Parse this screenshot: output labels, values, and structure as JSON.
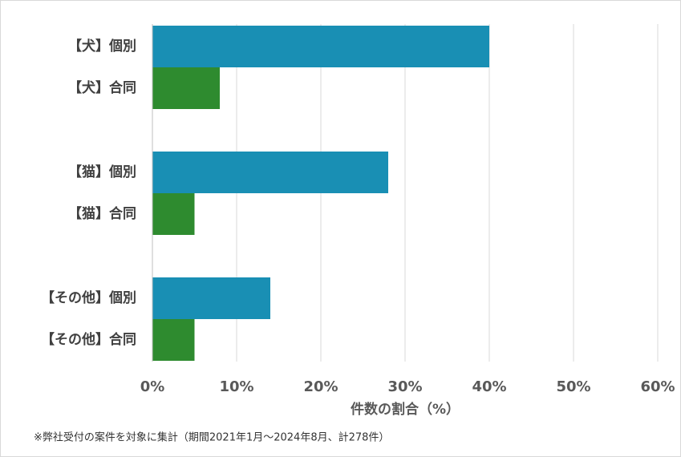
{
  "chart_data": {
    "type": "hbar",
    "categories": [
      "【犬】個別",
      "【犬】合同",
      "【猫】個別",
      "【猫】合同",
      "【その他】個別",
      "【その他】合同"
    ],
    "values": [
      40,
      8,
      28,
      5,
      14,
      5
    ],
    "colors": [
      "#198fb4",
      "#2e8b2f",
      "#198fb4",
      "#2e8b2f",
      "#198fb4",
      "#2e8b2f"
    ],
    "xlim": [
      0,
      60
    ],
    "xticks": [
      {
        "value": 0,
        "label": "0%"
      },
      {
        "value": 10,
        "label": "10%"
      },
      {
        "value": 20,
        "label": "20%"
      },
      {
        "value": 30,
        "label": "30%"
      },
      {
        "value": 40,
        "label": "40%"
      },
      {
        "value": 50,
        "label": "50%"
      },
      {
        "value": 60,
        "label": "60%"
      }
    ],
    "xlabel": "件数の割合（%）",
    "note": "※弊社受付の案件を対象に集計（期間2021年1月～2024年8月、計278件）",
    "grid": true
  }
}
